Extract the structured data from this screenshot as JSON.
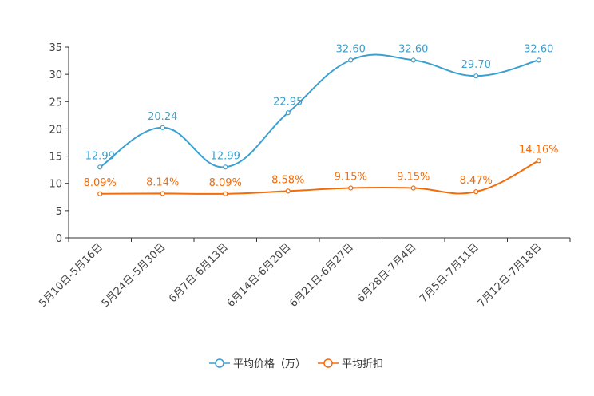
{
  "chart_data": {
    "type": "line",
    "categories": [
      "5月10日-5月16日",
      "5月24日-5月30日",
      "6月7日-6月13日",
      "6月14日-6月20日",
      "6月21日-6月27日",
      "6月28日-7月4日",
      "7月5日-7月11日",
      "7月12日-7月18日"
    ],
    "ylim": [
      0,
      35
    ],
    "yticks": [
      0,
      5,
      10,
      15,
      20,
      25,
      30,
      35
    ],
    "series": [
      {
        "name": "平均价格（万）",
        "color": "#3ba0cf",
        "values": [
          12.99,
          20.24,
          12.99,
          22.95,
          32.6,
          32.6,
          29.7,
          32.6
        ],
        "labels": [
          "12.99",
          "20.24",
          "12.99",
          "22.95",
          "32.60",
          "32.60",
          "29.70",
          "32.60"
        ]
      },
      {
        "name": "平均折扣",
        "color": "#f36c0a",
        "values": [
          8.09,
          8.14,
          8.09,
          8.58,
          9.15,
          9.15,
          8.47,
          14.16
        ],
        "labels": [
          "8.09%",
          "8.14%",
          "8.09%",
          "8.58%",
          "9.15%",
          "9.15%",
          "8.47%",
          "14.16%"
        ]
      }
    ],
    "legend_position": "bottom-center"
  }
}
